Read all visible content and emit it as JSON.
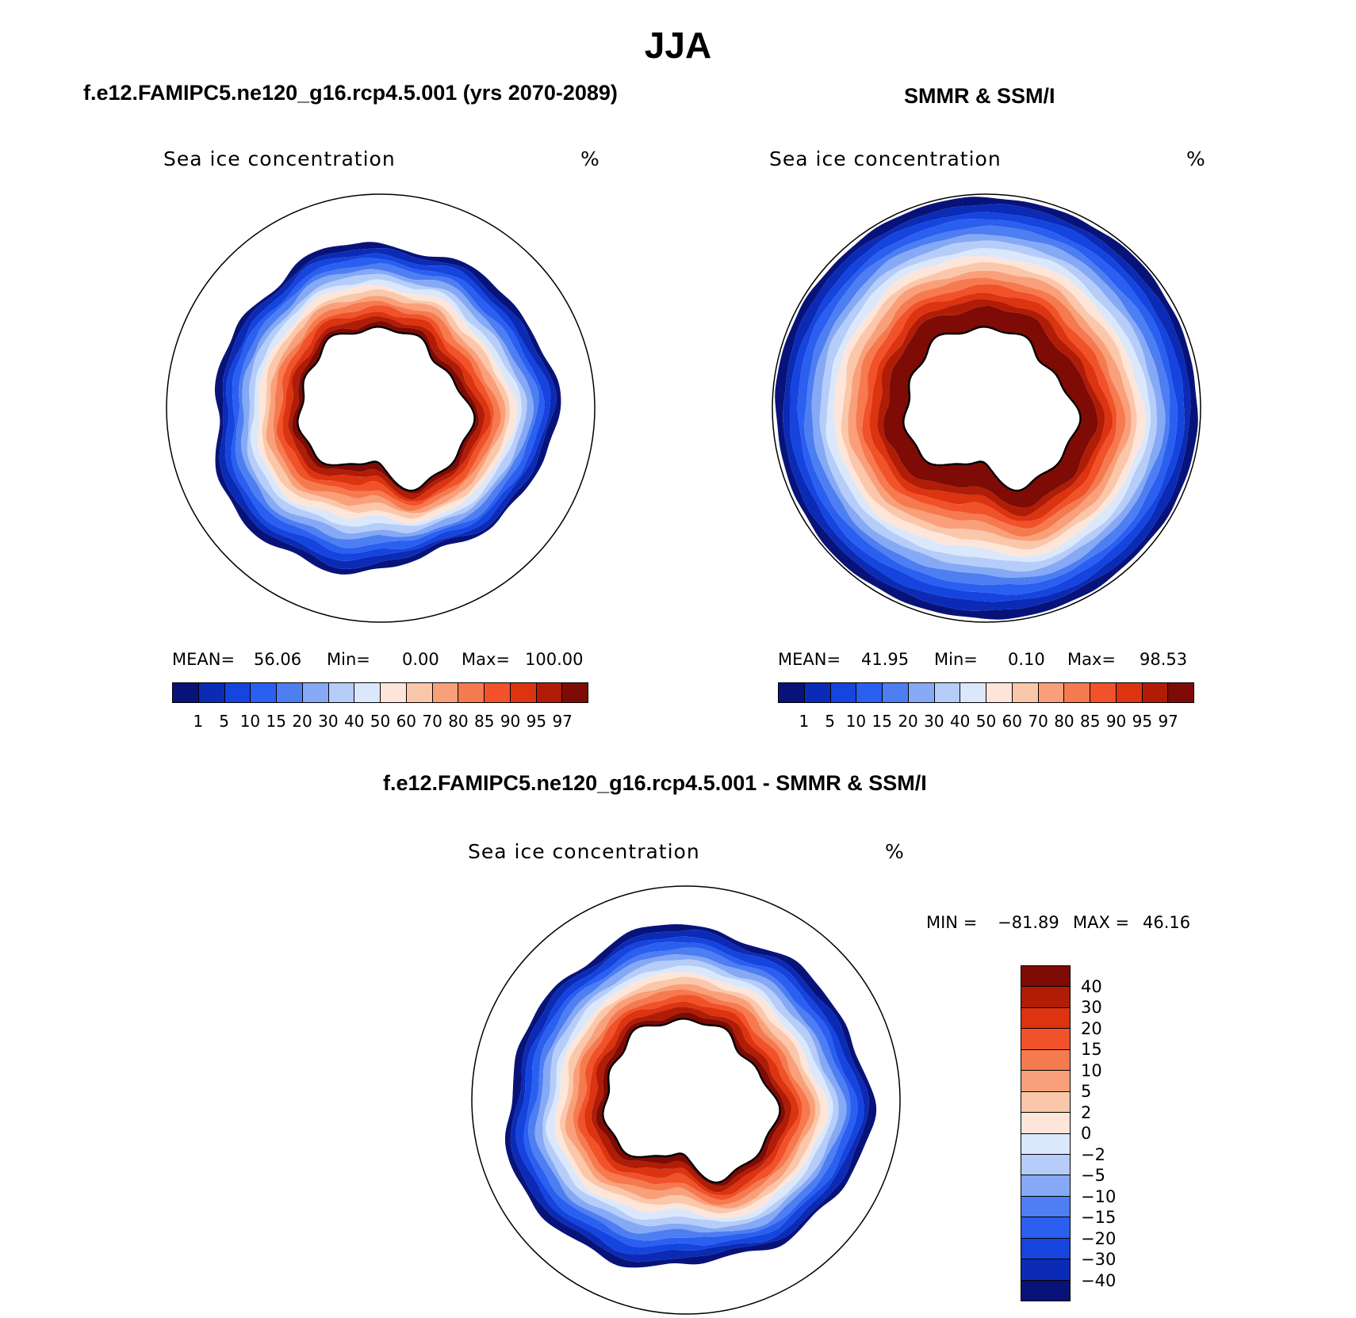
{
  "figure": {
    "title": "JJA",
    "panel_label": "Sea ice concentration",
    "units": "%"
  },
  "chart_data": [
    {
      "type": "heatmap",
      "projection": "south-polar-stereographic",
      "title": "f.e12.FAMIPC5.ne120_g16.rcp4.5.001 (yrs 2070-2089)",
      "variable": "Sea ice concentration",
      "units": "%",
      "stats": {
        "mean_label": "MEAN=",
        "mean": "56.06",
        "min_label": "Min=",
        "min": "0.00",
        "max_label": "Max=",
        "max": "100.00"
      },
      "levels": [
        "1",
        "5",
        "10",
        "15",
        "20",
        "30",
        "40",
        "50",
        "60",
        "70",
        "80",
        "85",
        "90",
        "95",
        "97"
      ],
      "colors": [
        "#08137a",
        "#0b2bb6",
        "#1544de",
        "#2a5ff0",
        "#4d7ef2",
        "#86a9f5",
        "#b5cdf8",
        "#dbe8fb",
        "#fde6d9",
        "#fbc7aa",
        "#f9a07a",
        "#f67a4f",
        "#f1522a",
        "#dc3310",
        "#b11c07",
        "#7e0b05"
      ],
      "pattern": "model"
    },
    {
      "type": "heatmap",
      "projection": "south-polar-stereographic",
      "title": "SMMR & SSM/I",
      "variable": "Sea ice concentration",
      "units": "%",
      "stats": {
        "mean_label": "MEAN=",
        "mean": "41.95",
        "min_label": "Min=",
        "min": "0.10",
        "max_label": "Max=",
        "max": "98.53"
      },
      "levels": [
        "1",
        "5",
        "10",
        "15",
        "20",
        "30",
        "40",
        "50",
        "60",
        "70",
        "80",
        "85",
        "90",
        "95",
        "97"
      ],
      "colors": [
        "#08137a",
        "#0b2bb6",
        "#1544de",
        "#2a5ff0",
        "#4d7ef2",
        "#86a9f5",
        "#b5cdf8",
        "#dbe8fb",
        "#fde6d9",
        "#fbc7aa",
        "#f9a07a",
        "#f67a4f",
        "#f1522a",
        "#dc3310",
        "#b11c07",
        "#7e0b05"
      ],
      "pattern": "obs"
    },
    {
      "type": "heatmap",
      "projection": "south-polar-stereographic",
      "title": "f.e12.FAMIPC5.ne120_g16.rcp4.5.001 - SMMR & SSM/I",
      "variable": "Sea ice concentration",
      "units": "%",
      "stats": {
        "min_label": "MIN =",
        "min": "−81.89",
        "max_label": "MAX =",
        "max": "46.16"
      },
      "levels": [
        "40",
        "30",
        "20",
        "15",
        "10",
        "5",
        "2",
        "0",
        "−2",
        "−5",
        "−10",
        "−15",
        "−20",
        "−30",
        "−40"
      ],
      "colors": [
        "#7e0b05",
        "#b11c07",
        "#dc3310",
        "#f1522a",
        "#f67a4f",
        "#f9a07a",
        "#fbc7aa",
        "#fde6d9",
        "#dbe8fb",
        "#b5cdf8",
        "#86a9f5",
        "#4d7ef2",
        "#2a5ff0",
        "#1544de",
        "#0b2bb6",
        "#08137a"
      ],
      "pattern": "diff"
    }
  ]
}
